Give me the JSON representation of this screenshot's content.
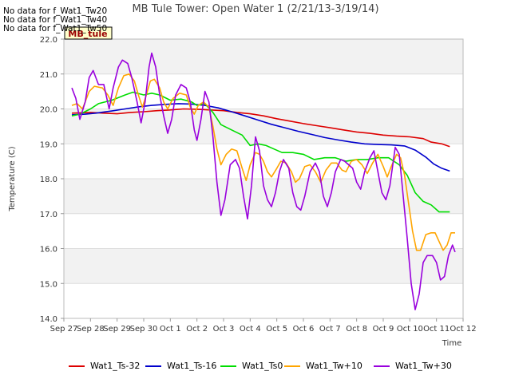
{
  "title": "MB Tule Tower: Open Water 1 (2/21/13-3/19/14)",
  "no_data_notes": [
    "No data for f_Wat1_Tw20",
    "No data for f_Wat1_Tw40",
    "No data for f_Wat1_Tw50"
  ],
  "badge": "MB_tule",
  "chart_data": {
    "type": "line",
    "title": "MB Tule Tower: Open Water 1 (2/21/13-3/19/14)",
    "xlabel": "Time",
    "ylabel": "Temperature (C)",
    "ylim": [
      14.0,
      22.0
    ],
    "xlim": [
      0,
      15
    ],
    "yticks": [
      "14.0",
      "15.0",
      "16.0",
      "17.0",
      "18.0",
      "19.0",
      "20.0",
      "21.0",
      "22.0"
    ],
    "xticks": [
      "Sep 27",
      "Sep 28",
      "Sep 29",
      "Sep 30",
      "Oct 1",
      "Oct 2",
      "Oct 3",
      "Oct 4",
      "Oct 5",
      "Oct 6",
      "Oct 7",
      "Oct 8",
      "Oct 9",
      "Oct 10",
      "Oct 11",
      "Oct 12"
    ],
    "grid": true,
    "legend_position": "bottom",
    "series": [
      {
        "name": "Wat1_Ts-32",
        "color": "#dd0000",
        "points": [
          [
            0.3,
            19.88
          ],
          [
            1.0,
            19.9
          ],
          [
            1.5,
            19.88
          ],
          [
            2.0,
            19.86
          ],
          [
            2.5,
            19.9
          ],
          [
            3.0,
            19.92
          ],
          [
            3.5,
            19.95
          ],
          [
            4.0,
            19.97
          ],
          [
            4.5,
            20.0
          ],
          [
            5.0,
            19.99
          ],
          [
            5.5,
            19.97
          ],
          [
            6.0,
            19.95
          ],
          [
            6.5,
            19.9
          ],
          [
            7.0,
            19.86
          ],
          [
            7.5,
            19.8
          ],
          [
            8.0,
            19.72
          ],
          [
            8.5,
            19.65
          ],
          [
            9.0,
            19.58
          ],
          [
            9.5,
            19.52
          ],
          [
            10.0,
            19.46
          ],
          [
            10.5,
            19.4
          ],
          [
            11.0,
            19.34
          ],
          [
            11.5,
            19.3
          ],
          [
            12.0,
            19.25
          ],
          [
            12.5,
            19.22
          ],
          [
            13.0,
            19.2
          ],
          [
            13.5,
            19.15
          ],
          [
            13.8,
            19.05
          ],
          [
            14.2,
            19.0
          ],
          [
            14.5,
            18.92
          ]
        ]
      },
      {
        "name": "Wat1_Ts-16",
        "color": "#0000cc",
        "points": [
          [
            0.3,
            19.83
          ],
          [
            0.8,
            19.85
          ],
          [
            1.2,
            19.88
          ],
          [
            1.8,
            19.94
          ],
          [
            2.3,
            20.0
          ],
          [
            2.8,
            20.06
          ],
          [
            3.3,
            20.1
          ],
          [
            3.8,
            20.13
          ],
          [
            4.3,
            20.15
          ],
          [
            4.8,
            20.14
          ],
          [
            5.3,
            20.1
          ],
          [
            5.8,
            20.03
          ],
          [
            6.3,
            19.92
          ],
          [
            6.8,
            19.8
          ],
          [
            7.3,
            19.68
          ],
          [
            7.8,
            19.56
          ],
          [
            8.3,
            19.46
          ],
          [
            8.8,
            19.36
          ],
          [
            9.3,
            19.27
          ],
          [
            9.8,
            19.18
          ],
          [
            10.3,
            19.11
          ],
          [
            10.8,
            19.05
          ],
          [
            11.3,
            19.0
          ],
          [
            11.8,
            18.98
          ],
          [
            12.3,
            18.97
          ],
          [
            12.8,
            18.94
          ],
          [
            13.2,
            18.82
          ],
          [
            13.6,
            18.62
          ],
          [
            13.9,
            18.42
          ],
          [
            14.2,
            18.3
          ],
          [
            14.5,
            18.22
          ]
        ]
      },
      {
        "name": "Wat1_Ts0",
        "color": "#00dd00",
        "points": [
          [
            0.3,
            19.8
          ],
          [
            0.6,
            19.85
          ],
          [
            1.0,
            20.0
          ],
          [
            1.3,
            20.15
          ],
          [
            1.8,
            20.25
          ],
          [
            2.3,
            20.4
          ],
          [
            2.6,
            20.48
          ],
          [
            3.0,
            20.4
          ],
          [
            3.3,
            20.45
          ],
          [
            3.6,
            20.4
          ],
          [
            4.0,
            20.25
          ],
          [
            4.4,
            20.28
          ],
          [
            4.8,
            20.2
          ],
          [
            5.0,
            20.1
          ],
          [
            5.3,
            20.15
          ],
          [
            5.6,
            19.9
          ],
          [
            5.9,
            19.55
          ],
          [
            6.3,
            19.4
          ],
          [
            6.7,
            19.25
          ],
          [
            7.0,
            18.95
          ],
          [
            7.3,
            19.0
          ],
          [
            7.6,
            18.95
          ],
          [
            7.9,
            18.85
          ],
          [
            8.2,
            18.75
          ],
          [
            8.6,
            18.75
          ],
          [
            9.0,
            18.7
          ],
          [
            9.4,
            18.55
          ],
          [
            9.8,
            18.6
          ],
          [
            10.2,
            18.6
          ],
          [
            10.6,
            18.5
          ],
          [
            11.0,
            18.55
          ],
          [
            11.4,
            18.55
          ],
          [
            11.8,
            18.6
          ],
          [
            12.2,
            18.6
          ],
          [
            12.6,
            18.4
          ],
          [
            12.9,
            18.1
          ],
          [
            13.2,
            17.6
          ],
          [
            13.5,
            17.35
          ],
          [
            13.8,
            17.25
          ],
          [
            14.1,
            17.05
          ],
          [
            14.5,
            17.05
          ]
        ]
      },
      {
        "name": "Wat1_Tw+10",
        "color": "#ffa500",
        "points": [
          [
            0.3,
            20.1
          ],
          [
            0.5,
            20.15
          ],
          [
            0.7,
            20.0
          ],
          [
            0.95,
            20.5
          ],
          [
            1.15,
            20.65
          ],
          [
            1.45,
            20.6
          ],
          [
            1.65,
            20.4
          ],
          [
            1.85,
            20.1
          ],
          [
            2.05,
            20.6
          ],
          [
            2.25,
            20.95
          ],
          [
            2.45,
            21.0
          ],
          [
            2.65,
            20.8
          ],
          [
            2.8,
            20.4
          ],
          [
            2.95,
            20.05
          ],
          [
            3.1,
            20.4
          ],
          [
            3.25,
            20.8
          ],
          [
            3.4,
            20.85
          ],
          [
            3.6,
            20.6
          ],
          [
            3.75,
            20.2
          ],
          [
            3.9,
            20.0
          ],
          [
            4.1,
            20.3
          ],
          [
            4.35,
            20.45
          ],
          [
            4.6,
            20.4
          ],
          [
            4.75,
            20.05
          ],
          [
            4.9,
            19.85
          ],
          [
            5.05,
            20.1
          ],
          [
            5.25,
            20.2
          ],
          [
            5.45,
            20.05
          ],
          [
            5.6,
            19.5
          ],
          [
            5.75,
            18.85
          ],
          [
            5.9,
            18.4
          ],
          [
            6.1,
            18.7
          ],
          [
            6.3,
            18.85
          ],
          [
            6.5,
            18.8
          ],
          [
            6.7,
            18.3
          ],
          [
            6.85,
            17.95
          ],
          [
            7.0,
            18.4
          ],
          [
            7.2,
            18.75
          ],
          [
            7.35,
            18.7
          ],
          [
            7.5,
            18.5
          ],
          [
            7.65,
            18.2
          ],
          [
            7.8,
            18.05
          ],
          [
            8.0,
            18.3
          ],
          [
            8.15,
            18.5
          ],
          [
            8.35,
            18.45
          ],
          [
            8.55,
            18.2
          ],
          [
            8.7,
            17.9
          ],
          [
            8.85,
            18.0
          ],
          [
            9.05,
            18.35
          ],
          [
            9.25,
            18.4
          ],
          [
            9.45,
            18.2
          ],
          [
            9.65,
            17.9
          ],
          [
            9.85,
            18.25
          ],
          [
            10.05,
            18.45
          ],
          [
            10.25,
            18.45
          ],
          [
            10.45,
            18.25
          ],
          [
            10.6,
            18.2
          ],
          [
            10.8,
            18.5
          ],
          [
            11.0,
            18.55
          ],
          [
            11.2,
            18.4
          ],
          [
            11.4,
            18.15
          ],
          [
            11.6,
            18.45
          ],
          [
            11.8,
            18.7
          ],
          [
            12.0,
            18.35
          ],
          [
            12.15,
            18.05
          ],
          [
            12.3,
            18.35
          ],
          [
            12.5,
            18.7
          ],
          [
            12.65,
            18.6
          ],
          [
            12.8,
            18.1
          ],
          [
            12.95,
            17.3
          ],
          [
            13.1,
            16.5
          ],
          [
            13.25,
            15.95
          ],
          [
            13.4,
            15.95
          ],
          [
            13.6,
            16.4
          ],
          [
            13.8,
            16.45
          ],
          [
            13.95,
            16.45
          ],
          [
            14.1,
            16.2
          ],
          [
            14.25,
            15.95
          ],
          [
            14.4,
            16.1
          ],
          [
            14.55,
            16.45
          ],
          [
            14.7,
            16.45
          ]
        ]
      },
      {
        "name": "Wat1_Tw+30",
        "color": "#9900dd",
        "points": [
          [
            0.3,
            20.6
          ],
          [
            0.45,
            20.3
          ],
          [
            0.6,
            19.7
          ],
          [
            0.8,
            20.2
          ],
          [
            0.95,
            20.9
          ],
          [
            1.1,
            21.1
          ],
          [
            1.3,
            20.7
          ],
          [
            1.5,
            20.7
          ],
          [
            1.7,
            20.0
          ],
          [
            1.85,
            20.6
          ],
          [
            2.05,
            21.2
          ],
          [
            2.2,
            21.4
          ],
          [
            2.4,
            21.3
          ],
          [
            2.55,
            20.9
          ],
          [
            2.75,
            20.2
          ],
          [
            2.9,
            19.6
          ],
          [
            3.05,
            20.2
          ],
          [
            3.2,
            21.2
          ],
          [
            3.3,
            21.6
          ],
          [
            3.45,
            21.2
          ],
          [
            3.6,
            20.4
          ],
          [
            3.75,
            19.8
          ],
          [
            3.9,
            19.3
          ],
          [
            4.05,
            19.7
          ],
          [
            4.2,
            20.4
          ],
          [
            4.4,
            20.7
          ],
          [
            4.6,
            20.6
          ],
          [
            4.75,
            20.2
          ],
          [
            4.9,
            19.4
          ],
          [
            5.0,
            19.1
          ],
          [
            5.15,
            19.7
          ],
          [
            5.3,
            20.5
          ],
          [
            5.45,
            20.2
          ],
          [
            5.6,
            19.2
          ],
          [
            5.75,
            17.9
          ],
          [
            5.9,
            16.95
          ],
          [
            6.05,
            17.4
          ],
          [
            6.25,
            18.4
          ],
          [
            6.45,
            18.55
          ],
          [
            6.6,
            18.3
          ],
          [
            6.75,
            17.5
          ],
          [
            6.9,
            16.85
          ],
          [
            7.05,
            17.8
          ],
          [
            7.2,
            19.2
          ],
          [
            7.35,
            18.8
          ],
          [
            7.5,
            17.8
          ],
          [
            7.65,
            17.4
          ],
          [
            7.8,
            17.2
          ],
          [
            7.95,
            17.6
          ],
          [
            8.1,
            18.2
          ],
          [
            8.25,
            18.55
          ],
          [
            8.45,
            18.3
          ],
          [
            8.6,
            17.6
          ],
          [
            8.75,
            17.2
          ],
          [
            8.9,
            17.1
          ],
          [
            9.05,
            17.5
          ],
          [
            9.25,
            18.2
          ],
          [
            9.45,
            18.45
          ],
          [
            9.6,
            18.2
          ],
          [
            9.75,
            17.5
          ],
          [
            9.9,
            17.2
          ],
          [
            10.05,
            17.6
          ],
          [
            10.2,
            18.2
          ],
          [
            10.4,
            18.55
          ],
          [
            10.55,
            18.5
          ],
          [
            10.7,
            18.4
          ],
          [
            10.85,
            18.3
          ],
          [
            11.0,
            17.9
          ],
          [
            11.15,
            17.7
          ],
          [
            11.3,
            18.2
          ],
          [
            11.5,
            18.6
          ],
          [
            11.65,
            18.8
          ],
          [
            11.8,
            18.2
          ],
          [
            11.95,
            17.6
          ],
          [
            12.1,
            17.4
          ],
          [
            12.25,
            17.8
          ],
          [
            12.45,
            18.9
          ],
          [
            12.6,
            18.7
          ],
          [
            12.75,
            17.5
          ],
          [
            12.9,
            16.3
          ],
          [
            13.05,
            15.0
          ],
          [
            13.2,
            14.25
          ],
          [
            13.35,
            14.7
          ],
          [
            13.5,
            15.6
          ],
          [
            13.65,
            15.8
          ],
          [
            13.85,
            15.8
          ],
          [
            14.0,
            15.6
          ],
          [
            14.15,
            15.1
          ],
          [
            14.3,
            15.2
          ],
          [
            14.45,
            15.8
          ],
          [
            14.6,
            16.1
          ],
          [
            14.7,
            15.9
          ]
        ]
      }
    ]
  }
}
